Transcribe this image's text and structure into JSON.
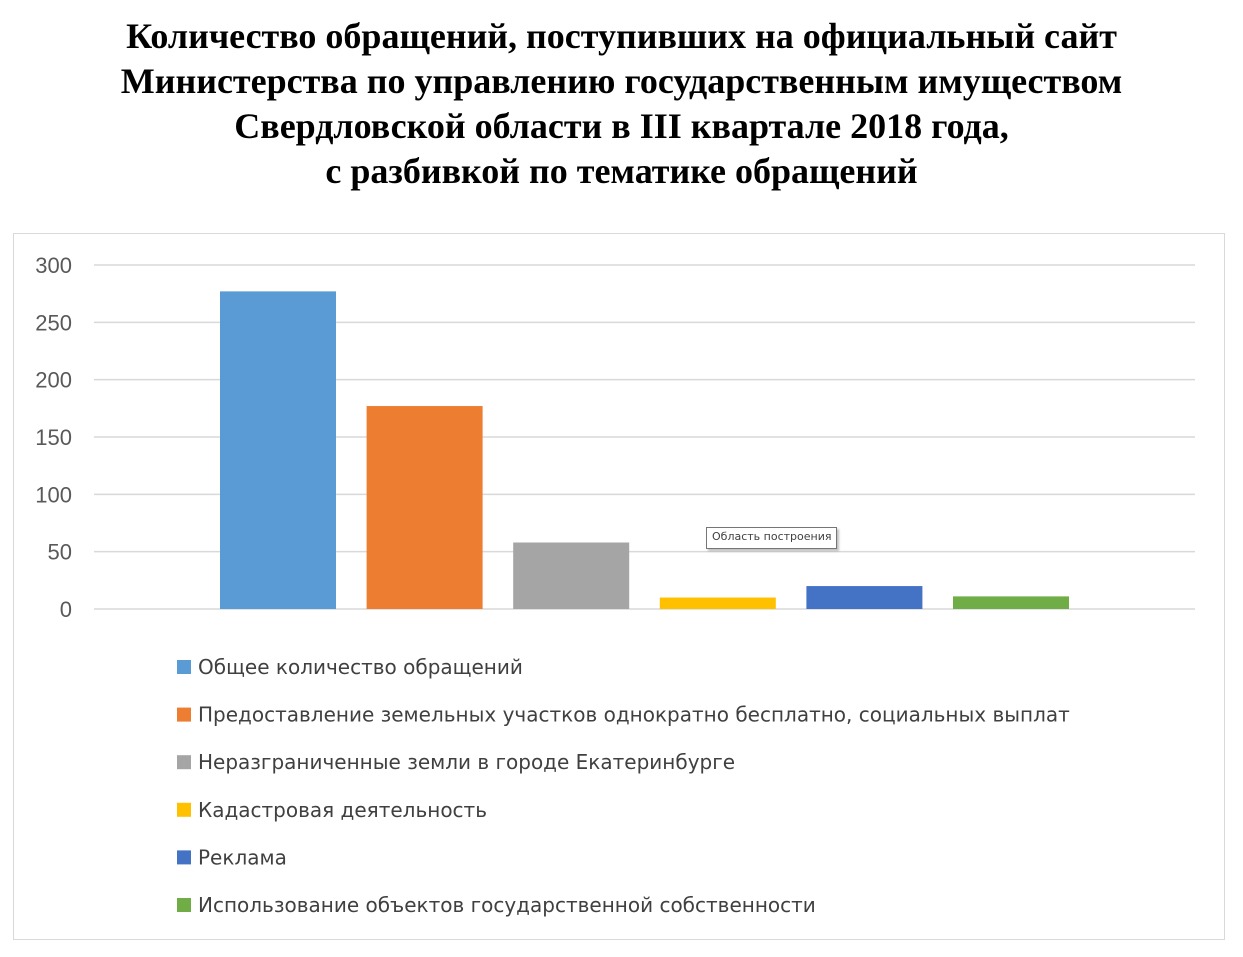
{
  "title_lines": [
    "Количество обращений, поступивших на официальный сайт",
    "Министерства по управлению государственным имуществом",
    "Свердловской области в III квартале 2018 года,",
    "с разбивкой по тематике обращений"
  ],
  "tooltip": "Область построения",
  "chart_data": {
    "type": "bar",
    "ylim": [
      0,
      300
    ],
    "yticks": [
      0,
      50,
      100,
      150,
      200,
      250,
      300
    ],
    "grid": true,
    "legend_position": "bottom",
    "series": [
      {
        "name": "Общее количество обращений",
        "value": 277,
        "color": "#5B9BD5"
      },
      {
        "name": "Предоставление земельных участков однократно бесплатно, социальных выплат",
        "value": 177,
        "color": "#ED7D31"
      },
      {
        "name": "Неразграниченные земли в городе Екатеринбурге",
        "value": 58,
        "color": "#A5A5A5"
      },
      {
        "name": "Кадастровая деятельность",
        "value": 10,
        "color": "#FFC000"
      },
      {
        "name": "Реклама",
        "value": 20,
        "color": "#4472C4"
      },
      {
        "name": "Использование объектов государственной собственности",
        "value": 11,
        "color": "#70AD47"
      }
    ]
  }
}
